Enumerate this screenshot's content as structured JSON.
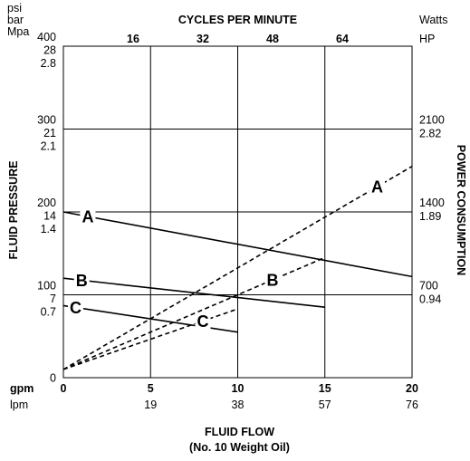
{
  "chart_data": {
    "type": "line",
    "title": "CYCLES PER MINUTE",
    "xlabel": "FLUID FLOW",
    "xlabel_sub": "(No. 10 Weight Oil)",
    "ylabel_left": "FLUID PRESSURE",
    "ylabel_right": "POWER CONSUMPTION",
    "xlim": [
      0,
      20
    ],
    "ylim": [
      0,
      400
    ],
    "grid": true,
    "bottom_axis": {
      "unit_primary": "gpm",
      "unit_secondary": "lpm",
      "ticks": [
        0,
        5,
        10,
        15,
        20
      ],
      "primary_labels": [
        "0",
        "5",
        "10",
        "15",
        "20"
      ],
      "secondary_labels": [
        "",
        "19",
        "38",
        "57",
        "76"
      ]
    },
    "top_axis": {
      "ticks": [
        4,
        8,
        12,
        16
      ],
      "labels": [
        "16",
        "32",
        "48",
        "64"
      ]
    },
    "left_axis": {
      "units": [
        "psi",
        "bar",
        "Mpa"
      ],
      "ticks": [
        {
          "value": 400,
          "labels": [
            "400",
            "28",
            "2.8"
          ]
        },
        {
          "value": 300,
          "labels": [
            "300",
            "21",
            "2.1"
          ]
        },
        {
          "value": 200,
          "labels": [
            "200",
            "14",
            "1.4"
          ]
        },
        {
          "value": 100,
          "labels": [
            "100",
            "7",
            "0.7"
          ]
        },
        {
          "value": 0,
          "labels": [
            "0"
          ]
        }
      ]
    },
    "right_axis": {
      "units": [
        "Watts",
        "HP"
      ],
      "ticks": [
        {
          "value": 300,
          "labels": [
            "2100",
            "2.82"
          ]
        },
        {
          "value": 200,
          "labels": [
            "1400",
            "1.89"
          ]
        },
        {
          "value": 100,
          "labels": [
            "700",
            "0.94"
          ]
        }
      ]
    },
    "series": [
      {
        "name": "A",
        "kind": "pressure",
        "style": "solid",
        "x": [
          0,
          20
        ],
        "y": [
          200,
          122
        ]
      },
      {
        "name": "B",
        "kind": "pressure",
        "style": "solid",
        "x": [
          0,
          15
        ],
        "y": [
          120,
          85
        ]
      },
      {
        "name": "C",
        "kind": "pressure",
        "style": "solid",
        "x": [
          0,
          10
        ],
        "y": [
          87,
          55
        ]
      },
      {
        "name": "A",
        "kind": "power",
        "style": "dashed",
        "x": [
          0,
          20
        ],
        "y": [
          10,
          255
        ]
      },
      {
        "name": "B",
        "kind": "power",
        "style": "dashed",
        "x": [
          0,
          15
        ],
        "y": [
          10,
          145
        ]
      },
      {
        "name": "C",
        "kind": "power",
        "style": "dashed",
        "x": [
          0,
          10
        ],
        "y": [
          10,
          83
        ]
      }
    ]
  }
}
